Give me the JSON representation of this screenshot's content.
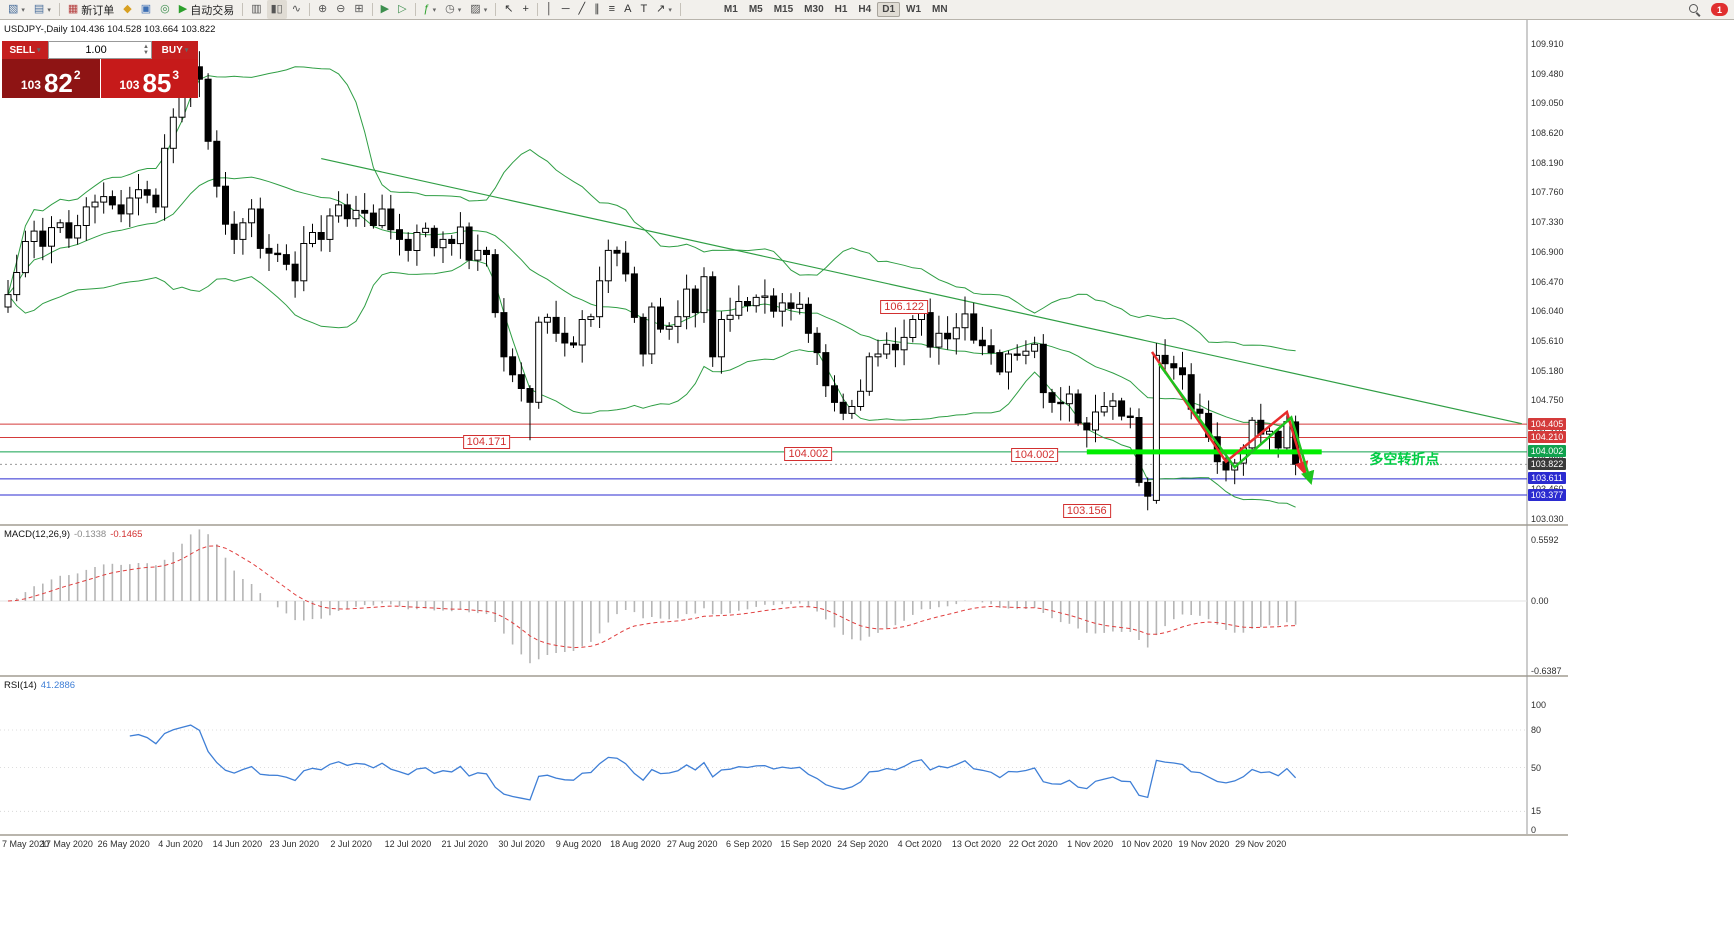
{
  "app": {
    "badge_count": "1"
  },
  "toolbar": {
    "items": [
      {
        "kind": "icon",
        "name": "new-chart-icon",
        "glyph": "▧",
        "color": "#4a6f9c",
        "dropdown": true
      },
      {
        "kind": "icon",
        "name": "profiles-icon",
        "glyph": "▤",
        "color": "#4a6f9c",
        "dropdown": true
      },
      {
        "kind": "sep"
      },
      {
        "kind": "button",
        "name": "new-order-button",
        "glyph": "▦",
        "color": "#b43c3c",
        "label": "新订单"
      },
      {
        "kind": "icon",
        "name": "metaeditor-icon",
        "glyph": "◆",
        "color": "#d8a021"
      },
      {
        "kind": "icon",
        "name": "terminal-icon",
        "glyph": "▣",
        "color": "#3d6fb4"
      },
      {
        "kind": "icon",
        "name": "tester-icon",
        "glyph": "◎",
        "color": "#3d8f4e"
      },
      {
        "kind": "button",
        "name": "autotrading-button",
        "glyph": "▶",
        "color": "#2ca02c",
        "label": "自动交易"
      },
      {
        "kind": "sep"
      },
      {
        "kind": "icon",
        "name": "bar-chart-icon",
        "glyph": "▥",
        "color": "#555555"
      },
      {
        "kind": "icon",
        "name": "candlestick-chart-icon",
        "glyph": "▮▯",
        "color": "#555555",
        "active": true
      },
      {
        "kind": "icon",
        "name": "line-chart-icon",
        "glyph": "∿",
        "color": "#555555"
      },
      {
        "kind": "sep"
      },
      {
        "kind": "icon",
        "name": "zoom-in-icon",
        "glyph": "⊕",
        "color": "#555555"
      },
      {
        "kind": "icon",
        "name": "zoom-out-icon",
        "glyph": "⊖",
        "color": "#555555"
      },
      {
        "kind": "icon",
        "name": "tile-windows-icon",
        "glyph": "⊞",
        "color": "#555555"
      },
      {
        "kind": "sep"
      },
      {
        "kind": "icon",
        "name": "auto-scroll-icon",
        "glyph": "▶",
        "color": "#3d8f4e"
      },
      {
        "kind": "icon",
        "name": "chart-shift-icon",
        "glyph": "▷",
        "color": "#3d8f4e"
      },
      {
        "kind": "sep"
      },
      {
        "kind": "icon",
        "name": "indicators-icon",
        "glyph": "ƒ",
        "color": "#2ca02c",
        "dropdown": true
      },
      {
        "kind": "icon",
        "name": "periods-icon",
        "glyph": "◷",
        "color": "#555555",
        "dropdown": true
      },
      {
        "kind": "icon",
        "name": "templates-icon",
        "glyph": "▨",
        "color": "#555555",
        "dropdown": true
      },
      {
        "kind": "sep"
      },
      {
        "kind": "icon",
        "name": "cursor-icon",
        "glyph": "↖",
        "color": "#333333"
      },
      {
        "kind": "icon",
        "name": "crosshair-icon",
        "glyph": "+",
        "color": "#333333"
      },
      {
        "kind": "sep"
      },
      {
        "kind": "icon",
        "name": "vertical-line-icon",
        "glyph": "│",
        "color": "#333333"
      },
      {
        "kind": "icon",
        "name": "horizontal-line-icon",
        "glyph": "─",
        "color": "#333333"
      },
      {
        "kind": "icon",
        "name": "trendline-icon",
        "glyph": "╱",
        "color": "#333333"
      },
      {
        "kind": "icon",
        "name": "channel-icon",
        "glyph": "∥",
        "color": "#333333"
      },
      {
        "kind": "icon",
        "name": "fibonacci-icon",
        "glyph": "≡",
        "color": "#333333"
      },
      {
        "kind": "icon",
        "name": "text-icon",
        "glyph": "A",
        "color": "#333333"
      },
      {
        "kind": "icon",
        "name": "text-label-icon",
        "glyph": "T",
        "color": "#333333"
      },
      {
        "kind": "icon",
        "name": "arrows-icon",
        "glyph": "↗",
        "color": "#333333",
        "dropdown": true
      },
      {
        "kind": "sep"
      }
    ],
    "timeframes": [
      {
        "label": "M1"
      },
      {
        "label": "M5"
      },
      {
        "label": "M15"
      },
      {
        "label": "M30"
      },
      {
        "label": "H1"
      },
      {
        "label": "H4"
      },
      {
        "label": "D1",
        "active": true
      },
      {
        "label": "W1"
      },
      {
        "label": "MN"
      }
    ]
  },
  "chart": {
    "title": "USDJPY-,Daily 104.436 104.528 103.664 103.822",
    "trade_panel": {
      "sell_label": "SELL",
      "buy_label": "BUY",
      "volume": "1.00",
      "sell_small": "103",
      "sell_big": "82",
      "sell_sup": "2",
      "buy_small": "103",
      "buy_big": "85",
      "buy_sup": "3"
    },
    "turning_point_label": "多空转折点",
    "price_axis_labels": [
      "109.910",
      "109.480",
      "109.050",
      "108.620",
      "108.190",
      "107.760",
      "107.330",
      "106.900",
      "106.470",
      "106.040",
      "105.610",
      "105.180",
      "104.750",
      "104.320",
      "103.890",
      "103.460",
      "103.030"
    ],
    "price_chips": [
      {
        "text": "104.405",
        "price": 104.405,
        "color": "#d43a3a"
      },
      {
        "text": "104.210",
        "price": 104.21,
        "color": "#d43a3a"
      },
      {
        "text": "104.002",
        "price": 104.002,
        "color": "#12a14e"
      },
      {
        "text": "103.822",
        "price": 103.822,
        "color": "#3a3a3a"
      },
      {
        "text": "103.611",
        "price": 103.611,
        "color": "#2b2bd0"
      },
      {
        "text": "103.377",
        "price": 103.377,
        "color": "#2b2bd0"
      }
    ],
    "date_axis_labels": [
      "7 May 2020",
      "17 May 2020",
      "26 May 2020",
      "4 Jun 2020",
      "14 Jun 2020",
      "23 Jun 2020",
      "2 Jul 2020",
      "12 Jul 2020",
      "21 Jul 2020",
      "30 Jul 2020",
      "9 Aug 2020",
      "18 Aug 2020",
      "27 Aug 2020",
      "6 Sep 2020",
      "15 Sep 2020",
      "24 Sep 2020",
      "4 Oct 2020",
      "13 Oct 2020",
      "22 Oct 2020",
      "1 Nov 2020",
      "10 Nov 2020",
      "19 Nov 2020",
      "29 Nov 2020"
    ]
  },
  "macd": {
    "label": "MACD(12,26,9)",
    "value_main": "-0.1338",
    "value_signal": "-0.1465",
    "scale_labels": [
      "0.5592",
      "0.00",
      "-0.6387"
    ]
  },
  "rsi": {
    "label": "RSI(14)",
    "value": "41.2886",
    "scale_labels": [
      "100",
      "80",
      "50",
      "15",
      "0"
    ]
  },
  "chart_data": {
    "type": "candlestick",
    "symbol": "USDJPY",
    "timeframe": "Daily",
    "y_range": {
      "top_price": 109.91,
      "bottom_price": 103.03
    },
    "first_open": 106.1,
    "closes": [
      106.28,
      106.6,
      107.05,
      107.2,
      106.98,
      107.25,
      107.32,
      107.1,
      107.28,
      107.55,
      107.62,
      107.7,
      107.58,
      107.45,
      107.68,
      107.8,
      107.72,
      107.55,
      108.4,
      108.85,
      109.2,
      109.58,
      109.4,
      108.5,
      107.85,
      107.3,
      107.08,
      107.32,
      107.52,
      106.95,
      106.88,
      106.86,
      106.72,
      106.48,
      107.02,
      107.18,
      107.08,
      107.42,
      107.58,
      107.38,
      107.5,
      107.46,
      107.28,
      107.52,
      107.22,
      107.08,
      106.92,
      107.18,
      107.24,
      106.96,
      107.08,
      107.02,
      107.26,
      106.78,
      106.92,
      106.86,
      106.02,
      105.38,
      105.12,
      104.92,
      104.72,
      105.88,
      105.95,
      105.72,
      105.58,
      105.55,
      105.92,
      105.96,
      106.48,
      106.92,
      106.88,
      106.58,
      105.95,
      105.42,
      106.1,
      105.78,
      105.82,
      105.96,
      106.36,
      106.02,
      106.54,
      105.38,
      105.92,
      105.98,
      106.18,
      106.12,
      106.24,
      106.26,
      106.04,
      106.16,
      106.08,
      106.14,
      105.72,
      105.44,
      104.96,
      104.72,
      104.56,
      104.66,
      104.88,
      105.38,
      105.42,
      105.56,
      105.48,
      105.66,
      105.92,
      106.02,
      105.52,
      105.72,
      105.64,
      105.8,
      106.0,
      105.62,
      105.54,
      105.44,
      105.16,
      105.42,
      105.4,
      105.46,
      105.56,
      104.86,
      104.72,
      104.7,
      104.84,
      104.42,
      104.32,
      104.58,
      104.66,
      104.74,
      104.52,
      104.5,
      103.56,
      103.36,
      105.4,
      105.28,
      105.22,
      105.12,
      104.62,
      104.56,
      104.22,
      103.86,
      103.74,
      103.84,
      104.06,
      104.46,
      104.26,
      104.3,
      104.06,
      104.44,
      103.822
    ],
    "overrides": {
      "21": {
        "high": 109.85
      },
      "60": {
        "low": 104.171
      },
      "105": {
        "high": 106.122
      },
      "131": {
        "low": 103.156
      },
      "132": {
        "open": 103.3,
        "low": 103.25
      },
      "148": {
        "open": 104.436,
        "high": 104.528,
        "low": 103.664,
        "close": 103.822
      }
    },
    "bollinger": {
      "period": 20,
      "deviation": 2,
      "color": "#2f9e44"
    },
    "horizontal_lines": [
      {
        "price": 104.405,
        "color": "#d43a3a"
      },
      {
        "price": 104.21,
        "color": "#d43a3a"
      },
      {
        "price": 104.002,
        "color": "#12a14e"
      },
      {
        "price": 103.611,
        "color": "#2b2bd0"
      },
      {
        "price": 103.377,
        "color": "#2b2bd0"
      }
    ],
    "current_price_line": {
      "price": 103.822,
      "color": "#8a8a8a"
    },
    "trendline": {
      "from_index": 36,
      "from_price": 108.25,
      "to_index": 174,
      "to_price": 104.41,
      "color": "#2f9e44"
    },
    "support_segment": {
      "price": 104.002,
      "from_index": 124,
      "to_index": 151,
      "color": "#00ee00"
    },
    "annotations": [
      {
        "text": "106.122",
        "index": 103,
        "price": 106.1
      },
      {
        "text": "104.171",
        "index": 55,
        "price": 104.14
      },
      {
        "text": "104.002",
        "index": 92,
        "price": 103.97
      },
      {
        "text": "104.002",
        "index": 118,
        "price": 103.95
      },
      {
        "text": "103.156",
        "index": 124,
        "price": 103.14
      }
    ],
    "turning_point": {
      "index": 160.5,
      "price": 103.9
    },
    "arrows": [
      {
        "color": "#e82c2c",
        "points": [
          [
            131.5,
            105.45
          ],
          [
            140,
            103.86
          ],
          [
            147,
            104.58
          ],
          [
            149,
            103.72
          ]
        ]
      },
      {
        "color": "#1ec41e",
        "points": [
          [
            132.3,
            105.28
          ],
          [
            141,
            103.78
          ],
          [
            147.5,
            104.5
          ],
          [
            149.7,
            103.58
          ]
        ]
      }
    ],
    "macd": {
      "fast": 12,
      "slow": 26,
      "signal": 9,
      "scale_max": 0.5592,
      "scale_min": -0.6387,
      "histogram_color": "#b5b5b5",
      "signal_color": "#e03e3e"
    },
    "rsi": {
      "period": 14,
      "last": 41.2886,
      "color": "#3f7fd6",
      "levels": [
        80,
        50,
        15
      ]
    }
  }
}
